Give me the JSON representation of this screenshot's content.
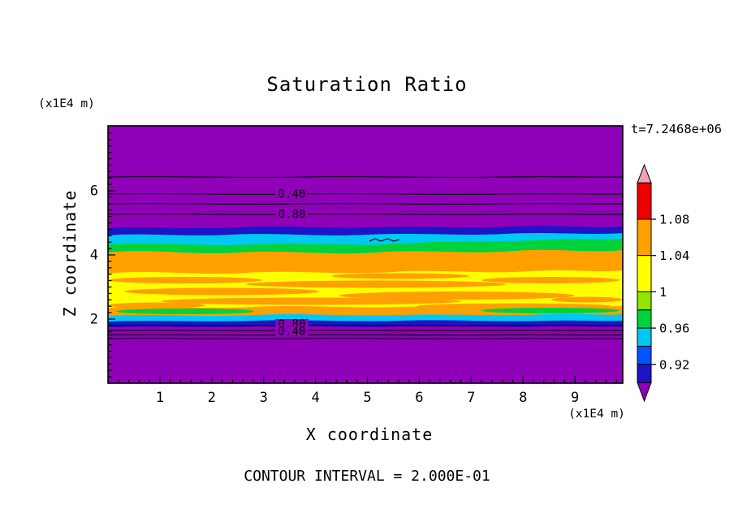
{
  "title": "Saturation Ratio",
  "time_label": "t=7.2468e+06",
  "footer": "CONTOUR INTERVAL = 2.000E-01",
  "axes": {
    "x_label": "X coordinate",
    "y_label": "Z coordinate",
    "x_unit": "(x1E4 m)",
    "y_unit": "(x1E4 m)",
    "x_ticks": [
      "1",
      "2",
      "3",
      "4",
      "5",
      "6",
      "7",
      "8",
      "9"
    ],
    "y_ticks": [
      "6",
      "4",
      "2"
    ]
  },
  "contour_labels": {
    "upper_040": "0.40",
    "upper_080": "0.80",
    "lower_080": "0.80",
    "lower_040": "0.40"
  },
  "colorbar": {
    "tick_labels": [
      "1.08",
      "1.04",
      "1",
      "0.96",
      "0.92"
    ]
  },
  "palette": {
    "purple": "#8F00B8",
    "navy": "#1C14C8",
    "blue": "#0055FF",
    "cyan": "#00C8F5",
    "green": "#00D23C",
    "chartreuse": "#94E400",
    "yellow": "#FFFF00",
    "orange": "#FFA000",
    "red": "#EE0000",
    "pink": "#F2A2AE",
    "line": "#000000",
    "background": "#FFFFFF"
  },
  "chart_data": {
    "type": "contour",
    "title": "Saturation Ratio",
    "xlabel": "X coordinate (x1E4 m)",
    "ylabel": "Z coordinate (x1E4 m)",
    "x_range": [
      0,
      9.9
    ],
    "z_range": [
      0,
      8
    ],
    "x_tick_values": [
      1,
      2,
      3,
      4,
      5,
      6,
      7,
      8,
      9
    ],
    "z_tick_values": [
      2,
      4,
      6
    ],
    "time": "t=7.2468e+06",
    "contour_interval": 0.2,
    "colorbar_labels_top_to_bottom": [
      1.08,
      1.04,
      1,
      0.96,
      0.92
    ],
    "colorbar_colors_top_to_bottom": [
      "pink",
      "red",
      "orange",
      "yellow",
      "chartreuse",
      "green",
      "cyan",
      "blue",
      "navy",
      "purple"
    ],
    "line_contours_upper": [
      {
        "value": 0.2,
        "z": 6.4
      },
      {
        "value": 0.4,
        "z": 5.9,
        "labeled": true
      },
      {
        "value": 0.6,
        "z": 5.6
      },
      {
        "value": 0.8,
        "z": 5.3,
        "labeled": true
      }
    ],
    "line_contours_lower": [
      {
        "value": 0.8,
        "z": 1.8,
        "labeled": true
      },
      {
        "value": 0.6,
        "z": 1.65
      },
      {
        "value": 0.4,
        "z": 1.5,
        "labeled": true
      },
      {
        "value": 0.2,
        "z": 1.4
      }
    ],
    "filled_bands_top_to_bottom": [
      {
        "color": "purple",
        "approx_value": "<0.90",
        "z": [
          4.85,
          8.0
        ]
      },
      {
        "color": "navy",
        "approx_value": "0.90-0.92",
        "z": [
          4.6,
          4.85
        ]
      },
      {
        "color": "cyan",
        "approx_value": "0.94-0.96",
        "z": [
          4.3,
          4.6
        ]
      },
      {
        "color": "green",
        "approx_value": "0.96-1.00",
        "z": [
          4.05,
          4.3
        ]
      },
      {
        "color": "orange",
        "approx_value": "1.04-1.08",
        "z": [
          3.4,
          4.05
        ]
      },
      {
        "color": "yellow",
        "approx_value": "1.00-1.04, with orange streaks",
        "z": [
          2.35,
          3.4
        ]
      },
      {
        "color": "orange",
        "approx_value": "1.04-1.08",
        "z": [
          2.3,
          2.35
        ]
      },
      {
        "color": "cyan",
        "approx_value": "0.94-0.96",
        "z": [
          2.05,
          2.3
        ]
      },
      {
        "color": "navy",
        "approx_value": "0.90-0.92",
        "z": [
          1.85,
          2.05
        ]
      },
      {
        "color": "purple",
        "approx_value": "<0.90",
        "z": [
          0.0,
          1.85
        ]
      }
    ]
  }
}
